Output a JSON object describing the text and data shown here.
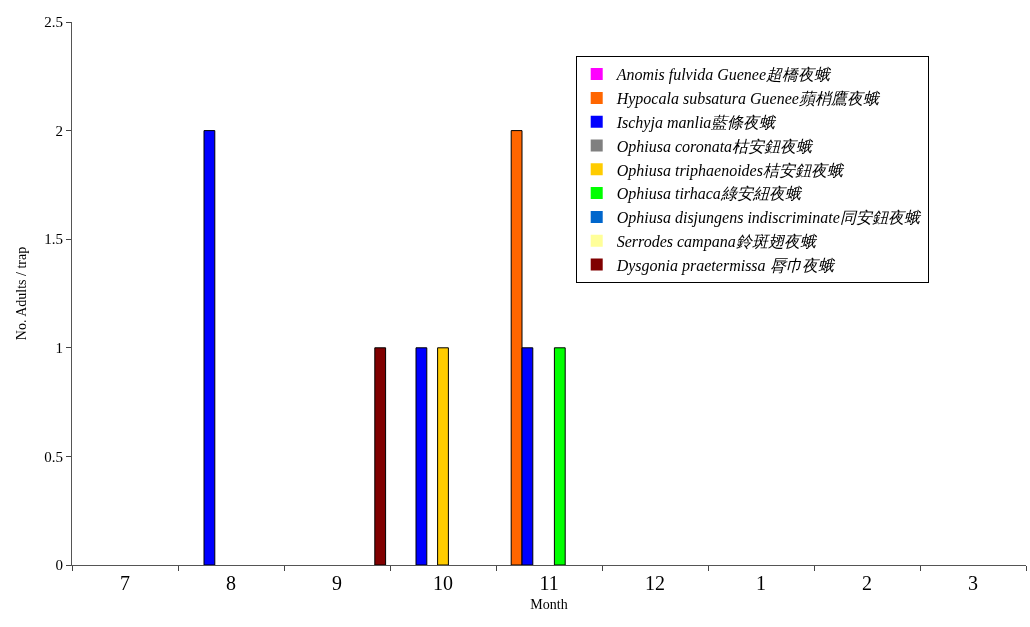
{
  "chart_data": {
    "type": "bar",
    "xlabel": "Month",
    "ylabel": "No. Adults / trap",
    "categories": [
      "7",
      "8",
      "9",
      "10",
      "11",
      "12",
      "1",
      "2",
      "3"
    ],
    "series": [
      {
        "name": "Anomis fulvida Guenee超橋夜蛾",
        "color": "#ff00ff",
        "values": [
          0,
          0,
          0,
          0,
          0,
          0,
          0,
          0,
          0
        ]
      },
      {
        "name": "Hypocala subsatura Guenee蘋梢鷹夜蛾",
        "color": "#ff6600",
        "values": [
          0,
          0,
          0,
          0,
          2,
          0,
          0,
          0,
          0
        ]
      },
      {
        "name": "Ischyja manlia藍條夜蛾",
        "color": "#0000ff",
        "values": [
          0,
          2,
          0,
          1,
          1,
          0,
          0,
          0,
          0
        ]
      },
      {
        "name": "Ophiusa coronata枯安鈕夜蛾",
        "color": "#808080",
        "values": [
          0,
          0,
          0,
          0,
          0,
          0,
          0,
          0,
          0
        ]
      },
      {
        "name": "Ophiusa triphaenoides桔安鈕夜蛾",
        "color": "#ffcc00",
        "values": [
          0,
          0,
          0,
          1,
          0,
          0,
          0,
          0,
          0
        ]
      },
      {
        "name": "Ophiusa tirhaca綠安紐夜蛾",
        "color": "#00ff00",
        "values": [
          0,
          0,
          0,
          0,
          1,
          0,
          0,
          0,
          0
        ]
      },
      {
        "name": "Ophiusa disjungens indiscriminate同安鈕夜蛾",
        "color": "#0066cc",
        "values": [
          0,
          0,
          0,
          0,
          0,
          0,
          0,
          0,
          0
        ]
      },
      {
        "name": "Serrodes campana鈴斑翅夜蛾",
        "color": "#ffff99",
        "values": [
          0,
          0,
          0,
          0,
          0,
          0,
          0,
          0,
          0
        ]
      },
      {
        "name": "Dysgonia praetermissa 脣巾夜蛾",
        "color": "#800000",
        "values": [
          0,
          0,
          1,
          0,
          0,
          0,
          0,
          0,
          0
        ]
      }
    ],
    "ylim": [
      0,
      2.5
    ],
    "yticks": [
      0,
      0.5,
      1,
      1.5,
      2,
      2.5
    ],
    "grid": false,
    "legend": "top right"
  }
}
